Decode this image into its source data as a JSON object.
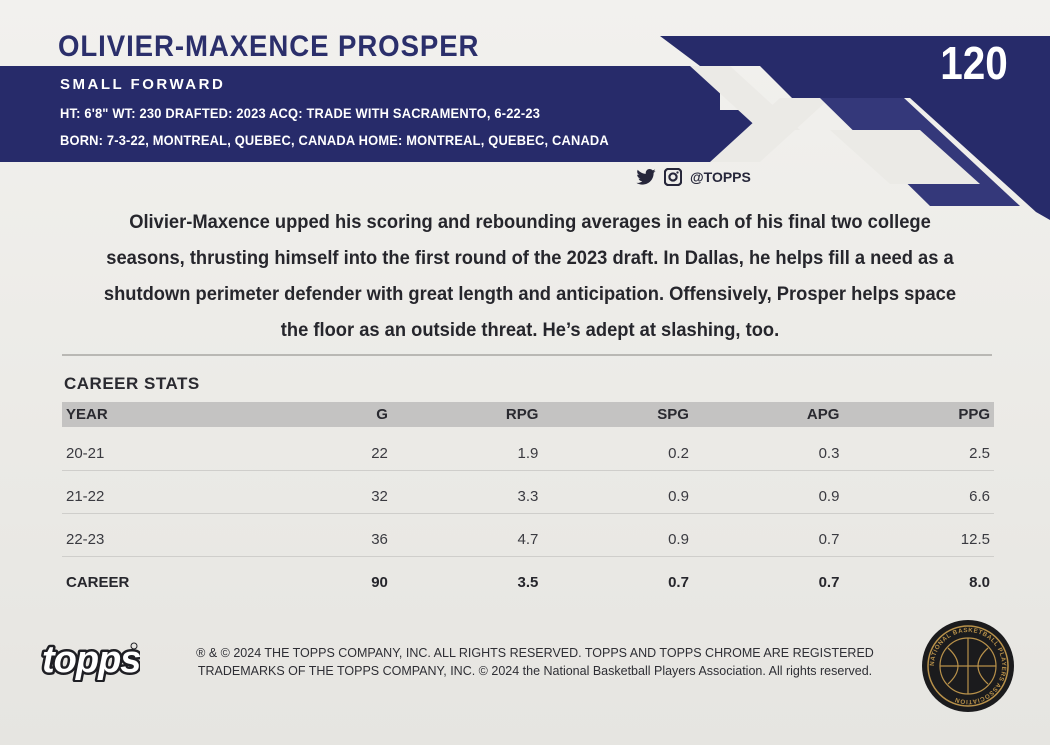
{
  "player": {
    "name": "OLIVIER-MAXENCE PROSPER",
    "position": "SMALL FORWARD",
    "bio_line1": "HT: 6'8\"  WT: 230  DRAFTED: 2023 ACQ: TRADE WITH SACRAMENTO, 6-22-23",
    "bio_line2": "BORN: 7-3-22, MONTREAL, QUEBEC, CANADA  HOME: MONTREAL, QUEBEC, CANADA",
    "card_number": "120"
  },
  "social": {
    "handle": "@TOPPS",
    "icons": [
      "twitter-icon",
      "instagram-icon"
    ]
  },
  "blurb": "Olivier-Maxence upped his scoring and rebounding averages in each of his final two college seasons, thrusting himself into the first round of the 2023 draft. In Dallas, he helps fill a need as a shutdown perimeter defender with great length and anticipation. Offensively, Prosper helps space the floor as an outside threat. He’s adept at slashing, too.",
  "stats": {
    "title": "CAREER STATS",
    "headers": [
      "YEAR",
      "G",
      "RPG",
      "SPG",
      "APG",
      "PPG"
    ],
    "rows": [
      [
        "20-21",
        "22",
        "1.9",
        "0.2",
        "0.3",
        "2.5"
      ],
      [
        "21-22",
        "32",
        "3.3",
        "0.9",
        "0.9",
        "6.6"
      ],
      [
        "22-23",
        "36",
        "4.7",
        "0.9",
        "0.7",
        "12.5"
      ]
    ],
    "career": [
      "CAREER",
      "90",
      "3.5",
      "0.7",
      "0.7",
      "8.0"
    ]
  },
  "footer": {
    "brand": "topps",
    "legal_line1": "® & © 2024 THE TOPPS COMPANY, INC. ALL RIGHTS RESERVED. TOPPS AND TOPPS CHROME ARE REGISTERED",
    "legal_line2": "TRADEMARKS OF THE TOPPS COMPANY, INC. © 2024 the National Basketball Players Association. All rights reserved.",
    "seal_text": "NATIONAL BASKETBALL PLAYERS ASSOCIATION"
  },
  "colors": {
    "navy": "#272b6a",
    "name_navy": "#2b2f6b",
    "card_bg": "#ecebe7",
    "table_header": "#c4c3c2",
    "seal_gold": "#b8914a"
  }
}
